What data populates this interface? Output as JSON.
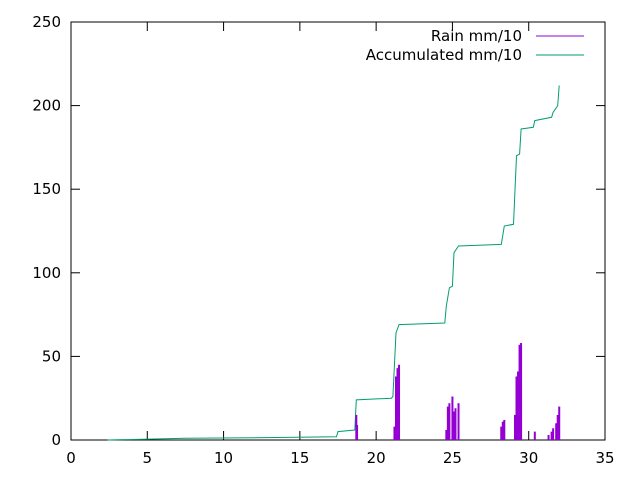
{
  "chart_data": {
    "type": "line",
    "xlim": [
      0,
      35
    ],
    "ylim": [
      0,
      250
    ],
    "x_ticks": [
      0,
      5,
      10,
      15,
      20,
      25,
      30,
      35
    ],
    "y_ticks": [
      0,
      50,
      100,
      150,
      200,
      250
    ],
    "grid": false,
    "legend_position": "top-right",
    "series": [
      {
        "name": "Rain mm/10",
        "style": "impulses",
        "color": "#9400d3",
        "x": [
          18.7,
          18.75,
          21.2,
          21.3,
          21.4,
          21.5,
          24.6,
          24.7,
          24.8,
          25.0,
          25.1,
          25.2,
          25.4,
          28.2,
          28.3,
          28.4,
          29.1,
          29.2,
          29.3,
          29.4,
          29.5,
          30.4,
          31.3,
          31.5,
          31.6,
          31.8,
          31.9,
          32.0
        ],
        "values": [
          15,
          9,
          8,
          38,
          43,
          45,
          6,
          20,
          22,
          26,
          17,
          19,
          22,
          8,
          11,
          12,
          15,
          38,
          41,
          57,
          58,
          5,
          3,
          5,
          7,
          10,
          15,
          20
        ]
      },
      {
        "name": "Accumulated mm/10",
        "style": "line",
        "color": "#009e73",
        "x": [
          2.4,
          7.5,
          13.5,
          17.4,
          17.5,
          18.6,
          18.7,
          21.0,
          21.1,
          21.3,
          21.5,
          24.5,
          24.6,
          24.8,
          25.0,
          25.1,
          25.4,
          28.2,
          28.4,
          29.0,
          29.2,
          29.4,
          29.5,
          30.3,
          30.4,
          31.5,
          31.6,
          31.9,
          32.0
        ],
        "values": [
          0,
          1,
          1.5,
          2,
          5,
          6,
          24,
          25,
          26,
          64,
          69,
          70,
          80,
          91,
          92,
          112,
          116,
          117,
          128,
          129,
          170,
          171,
          186,
          187,
          191,
          193,
          196,
          200,
          212
        ]
      }
    ]
  }
}
